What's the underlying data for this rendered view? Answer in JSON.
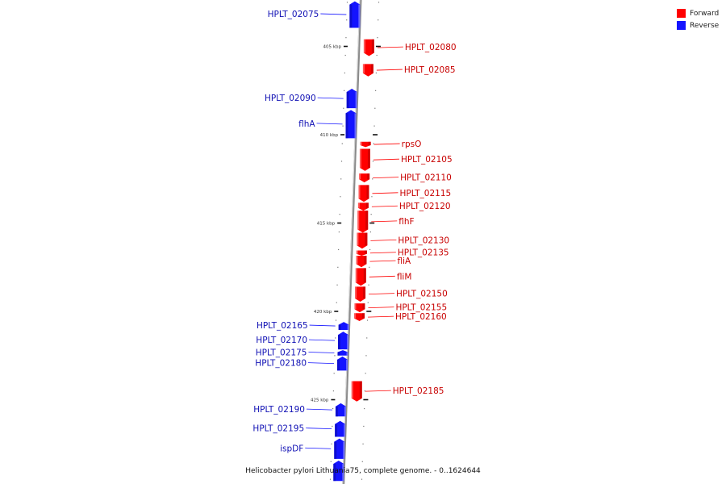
{
  "legend": {
    "forward": {
      "label": "Forward",
      "color": "#ff0000"
    },
    "reverse": {
      "label": "Reverse",
      "color": "#1414ff"
    }
  },
  "caption": "Helicobacter pylori Lithuania75, complete genome. - 0..1624644",
  "ruler": {
    "major_ticks": [
      {
        "label": "405 kbp",
        "kbp": 405
      },
      {
        "label": "410 kbp",
        "kbp": 410
      },
      {
        "label": "415 kbp",
        "kbp": 415
      },
      {
        "label": "420 kbp",
        "kbp": 420
      },
      {
        "label": "425 kbp",
        "kbp": 425
      }
    ]
  },
  "genes": [
    {
      "name": "HPLT_02075",
      "strand": "reverse",
      "start_kbp": 402.45,
      "end_kbp": 403.95
    },
    {
      "name": "HPLT_02080",
      "strand": "forward",
      "start_kbp": 404.6,
      "end_kbp": 405.55
    },
    {
      "name": "HPLT_02085",
      "strand": "forward",
      "start_kbp": 406.0,
      "end_kbp": 406.7
    },
    {
      "name": "HPLT_02090",
      "strand": "reverse",
      "start_kbp": 407.4,
      "end_kbp": 408.5
    },
    {
      "name": "flhA",
      "strand": "reverse",
      "start_kbp": 408.6,
      "end_kbp": 410.2
    },
    {
      "name": "rpsO",
      "strand": "forward",
      "start_kbp": 410.4,
      "end_kbp": 410.7
    },
    {
      "name": "HPLT_02105",
      "strand": "forward",
      "start_kbp": 410.8,
      "end_kbp": 412.05
    },
    {
      "name": "HPLT_02110",
      "strand": "forward",
      "start_kbp": 412.2,
      "end_kbp": 412.7
    },
    {
      "name": "HPLT_02115",
      "strand": "forward",
      "start_kbp": 412.85,
      "end_kbp": 413.8
    },
    {
      "name": "HPLT_02120",
      "strand": "forward",
      "start_kbp": 413.85,
      "end_kbp": 414.3
    },
    {
      "name": "flhF",
      "strand": "forward",
      "start_kbp": 414.3,
      "end_kbp": 415.55
    },
    {
      "name": "HPLT_02130",
      "strand": "forward",
      "start_kbp": 415.55,
      "end_kbp": 416.45
    },
    {
      "name": "HPLT_02135",
      "strand": "forward",
      "start_kbp": 416.55,
      "end_kbp": 416.85
    },
    {
      "name": "fliA",
      "strand": "forward",
      "start_kbp": 416.85,
      "end_kbp": 417.5
    },
    {
      "name": "fliM",
      "strand": "forward",
      "start_kbp": 417.55,
      "end_kbp": 418.55
    },
    {
      "name": "HPLT_02150",
      "strand": "forward",
      "start_kbp": 418.6,
      "end_kbp": 419.45
    },
    {
      "name": "HPLT_02155",
      "strand": "forward",
      "start_kbp": 419.55,
      "end_kbp": 420.05
    },
    {
      "name": "HPLT_02160",
      "strand": "forward",
      "start_kbp": 420.1,
      "end_kbp": 420.55
    },
    {
      "name": "HPLT_02165",
      "strand": "reverse",
      "start_kbp": 420.6,
      "end_kbp": 421.05
    },
    {
      "name": "HPLT_02170",
      "strand": "reverse",
      "start_kbp": 421.15,
      "end_kbp": 422.15
    },
    {
      "name": "HPLT_02175",
      "strand": "reverse",
      "start_kbp": 422.2,
      "end_kbp": 422.5
    },
    {
      "name": "HPLT_02180",
      "strand": "reverse",
      "start_kbp": 422.55,
      "end_kbp": 423.35
    },
    {
      "name": "HPLT_02185",
      "strand": "forward",
      "start_kbp": 423.95,
      "end_kbp": 425.1
    },
    {
      "name": "HPLT_02190",
      "strand": "reverse",
      "start_kbp": 425.2,
      "end_kbp": 425.95
    },
    {
      "name": "HPLT_02195",
      "strand": "reverse",
      "start_kbp": 426.2,
      "end_kbp": 427.1
    },
    {
      "name": "ispDF",
      "strand": "reverse",
      "start_kbp": 427.2,
      "end_kbp": 428.35
    },
    {
      "name": "",
      "strand": "reverse",
      "start_kbp": 428.45,
      "end_kbp": 429.6
    }
  ]
}
